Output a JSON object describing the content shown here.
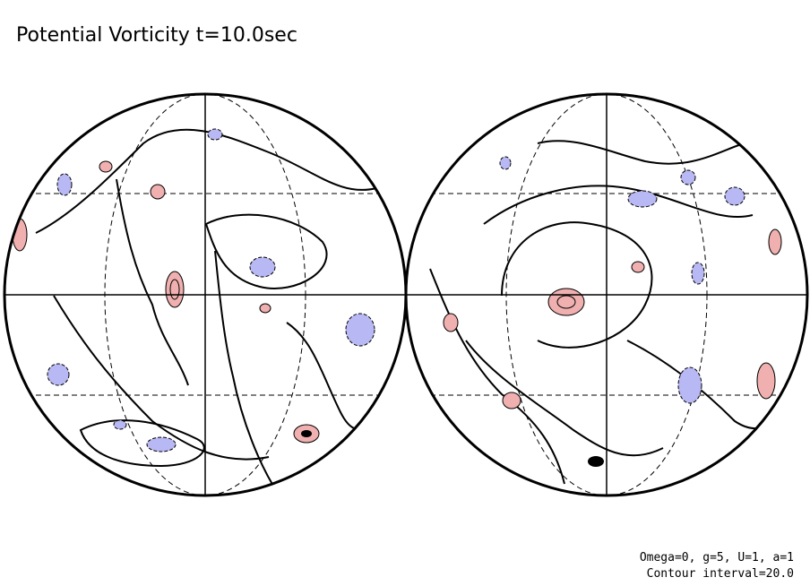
{
  "title": "Potential Vorticity t=10.0sec",
  "notes": [
    "Omega=0, g=5, U=1, a=1",
    "Contour interval=20.0"
  ]
}
